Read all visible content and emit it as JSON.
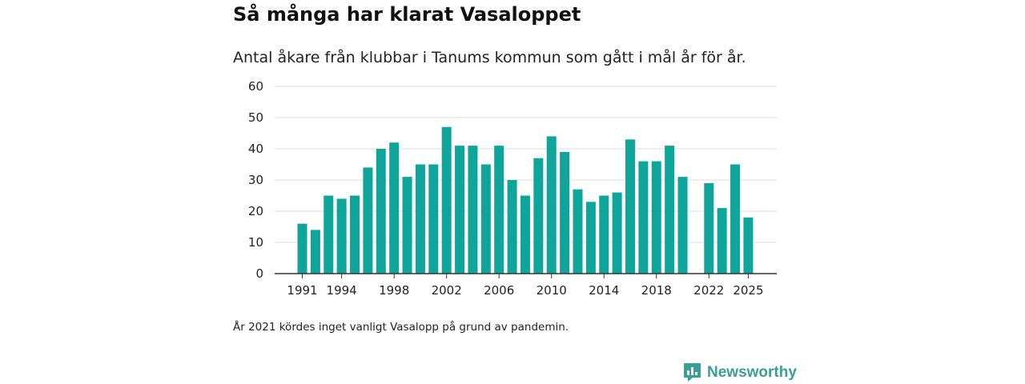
{
  "title": "Så många har klarat Vasaloppet",
  "subtitle": "Antal åkare från klubbar i Tanums kommun som gått i mål år för år.",
  "note": "År 2021 kördes inget vanligt Vasalopp på grund av pandemin.",
  "brand": {
    "name": "Newsworthy",
    "icon": "newsworthy-logo-icon",
    "color": "#3a9e98"
  },
  "colors": {
    "bar": "#10a59a",
    "grid": "#dddddd",
    "axis": "#333333"
  },
  "chart_data": {
    "type": "bar",
    "title": "Så många har klarat Vasaloppet",
    "xlabel": "",
    "ylabel": "",
    "ylim": [
      0,
      60
    ],
    "yticks": [
      0,
      10,
      20,
      30,
      40,
      50,
      60
    ],
    "xticks": [
      1991,
      1994,
      1998,
      2002,
      2006,
      2010,
      2014,
      2018,
      2022,
      2025
    ],
    "categories": [
      1991,
      1992,
      1993,
      1994,
      1995,
      1996,
      1997,
      1998,
      1999,
      2000,
      2001,
      2002,
      2003,
      2004,
      2005,
      2006,
      2007,
      2008,
      2009,
      2010,
      2011,
      2012,
      2013,
      2014,
      2015,
      2016,
      2017,
      2018,
      2019,
      2020,
      2021,
      2022,
      2023,
      2024,
      2025
    ],
    "values": [
      16,
      14,
      25,
      24,
      25,
      34,
      40,
      42,
      31,
      35,
      35,
      47,
      41,
      41,
      35,
      41,
      30,
      25,
      37,
      44,
      39,
      27,
      23,
      25,
      26,
      43,
      36,
      36,
      41,
      31,
      null,
      29,
      21,
      35,
      18
    ],
    "grid": true
  }
}
